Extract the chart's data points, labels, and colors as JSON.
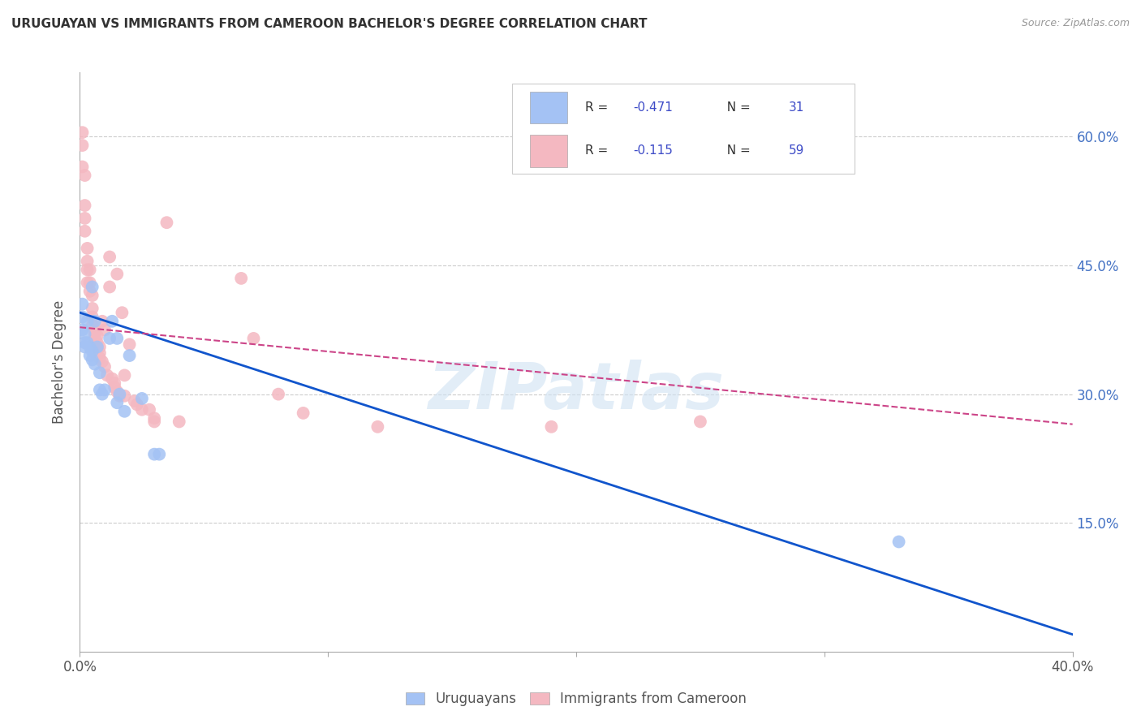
{
  "title": "URUGUAYAN VS IMMIGRANTS FROM CAMEROON BACHELOR'S DEGREE CORRELATION CHART",
  "source": "Source: ZipAtlas.com",
  "ylabel": "Bachelor's Degree",
  "legend_label_blue": "Uruguayans",
  "legend_label_pink": "Immigrants from Cameroon",
  "R_blue": -0.471,
  "N_blue": 31,
  "R_pink": -0.115,
  "N_pink": 59,
  "blue_color": "#a4c2f4",
  "pink_color": "#f4b8c1",
  "blue_line_color": "#1155cc",
  "pink_line_color": "#cc4488",
  "legend_text_color": "#333333",
  "legend_value_color": "#3d4bc7",
  "watermark_text": "ZIPatlas",
  "watermark_color": "#cfe2f3",
  "xlim": [
    0.0,
    0.4
  ],
  "ylim": [
    0.0,
    0.675
  ],
  "x_ticks": [
    0.0,
    0.1,
    0.2,
    0.3,
    0.4
  ],
  "x_tick_labels_show": [
    "0.0%",
    "",
    "",
    "",
    "40.0%"
  ],
  "y_ticks_right": [
    0.15,
    0.3,
    0.45,
    0.6
  ],
  "y_tick_labels_right": [
    "15.0%",
    "30.0%",
    "45.0%",
    "60.0%"
  ],
  "blue_line_x": [
    0.0,
    0.4
  ],
  "blue_line_y": [
    0.395,
    0.02
  ],
  "pink_line_x": [
    0.0,
    0.4
  ],
  "pink_line_y": [
    0.378,
    0.265
  ],
  "blue_dots": [
    [
      0.001,
      0.405
    ],
    [
      0.001,
      0.39
    ],
    [
      0.001,
      0.375
    ],
    [
      0.002,
      0.37
    ],
    [
      0.002,
      0.36
    ],
    [
      0.002,
      0.355
    ],
    [
      0.003,
      0.385
    ],
    [
      0.003,
      0.36
    ],
    [
      0.004,
      0.355
    ],
    [
      0.004,
      0.345
    ],
    [
      0.005,
      0.425
    ],
    [
      0.005,
      0.35
    ],
    [
      0.005,
      0.34
    ],
    [
      0.006,
      0.385
    ],
    [
      0.006,
      0.335
    ],
    [
      0.007,
      0.355
    ],
    [
      0.008,
      0.325
    ],
    [
      0.008,
      0.305
    ],
    [
      0.009,
      0.3
    ],
    [
      0.01,
      0.305
    ],
    [
      0.012,
      0.365
    ],
    [
      0.013,
      0.385
    ],
    [
      0.015,
      0.365
    ],
    [
      0.015,
      0.29
    ],
    [
      0.016,
      0.3
    ],
    [
      0.018,
      0.28
    ],
    [
      0.02,
      0.345
    ],
    [
      0.025,
      0.295
    ],
    [
      0.03,
      0.23
    ],
    [
      0.032,
      0.23
    ],
    [
      0.33,
      0.128
    ]
  ],
  "pink_dots": [
    [
      0.001,
      0.605
    ],
    [
      0.001,
      0.59
    ],
    [
      0.001,
      0.565
    ],
    [
      0.002,
      0.555
    ],
    [
      0.002,
      0.52
    ],
    [
      0.002,
      0.505
    ],
    [
      0.002,
      0.49
    ],
    [
      0.003,
      0.47
    ],
    [
      0.003,
      0.455
    ],
    [
      0.003,
      0.445
    ],
    [
      0.003,
      0.43
    ],
    [
      0.004,
      0.445
    ],
    [
      0.004,
      0.43
    ],
    [
      0.004,
      0.42
    ],
    [
      0.005,
      0.415
    ],
    [
      0.005,
      0.4
    ],
    [
      0.005,
      0.39
    ],
    [
      0.005,
      0.38
    ],
    [
      0.006,
      0.375
    ],
    [
      0.006,
      0.37
    ],
    [
      0.006,
      0.365
    ],
    [
      0.007,
      0.368
    ],
    [
      0.007,
      0.36
    ],
    [
      0.007,
      0.355
    ],
    [
      0.008,
      0.355
    ],
    [
      0.008,
      0.348
    ],
    [
      0.008,
      0.342
    ],
    [
      0.009,
      0.385
    ],
    [
      0.009,
      0.338
    ],
    [
      0.01,
      0.375
    ],
    [
      0.01,
      0.332
    ],
    [
      0.011,
      0.322
    ],
    [
      0.012,
      0.46
    ],
    [
      0.012,
      0.425
    ],
    [
      0.013,
      0.318
    ],
    [
      0.014,
      0.313
    ],
    [
      0.014,
      0.308
    ],
    [
      0.015,
      0.44
    ],
    [
      0.015,
      0.303
    ],
    [
      0.016,
      0.298
    ],
    [
      0.017,
      0.395
    ],
    [
      0.018,
      0.322
    ],
    [
      0.018,
      0.298
    ],
    [
      0.02,
      0.358
    ],
    [
      0.022,
      0.292
    ],
    [
      0.023,
      0.288
    ],
    [
      0.025,
      0.282
    ],
    [
      0.028,
      0.282
    ],
    [
      0.03,
      0.272
    ],
    [
      0.03,
      0.268
    ],
    [
      0.035,
      0.5
    ],
    [
      0.04,
      0.268
    ],
    [
      0.065,
      0.435
    ],
    [
      0.07,
      0.365
    ],
    [
      0.08,
      0.3
    ],
    [
      0.09,
      0.278
    ],
    [
      0.12,
      0.262
    ],
    [
      0.19,
      0.262
    ],
    [
      0.25,
      0.268
    ]
  ]
}
